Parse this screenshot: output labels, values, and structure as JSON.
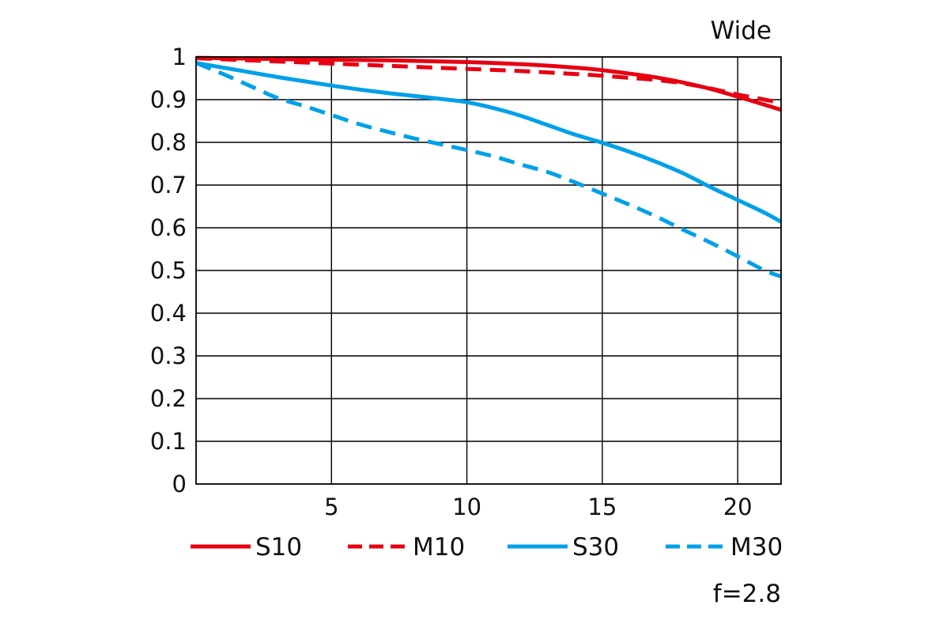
{
  "chart_data": {
    "type": "line",
    "title": "Wide",
    "annotation": "f=2.8",
    "xlabel": "",
    "ylabel": "",
    "xlim": [
      0,
      21.6
    ],
    "ylim": [
      0,
      1
    ],
    "x_ticks": [
      5,
      10,
      15,
      20
    ],
    "x_tick_labels": [
      "5",
      "10",
      "15",
      "20"
    ],
    "y_ticks": [
      0,
      0.1,
      0.2,
      0.3,
      0.4,
      0.5,
      0.6,
      0.7,
      0.8,
      0.9,
      1
    ],
    "y_tick_labels": [
      "0",
      "0.1",
      "0.2",
      "0.3",
      "0.4",
      "0.5",
      "0.6",
      "0.7",
      "0.8",
      "0.9",
      "1"
    ],
    "grid": true,
    "legend_position": "bottom",
    "series": [
      {
        "name": "S10",
        "color": "#e60012",
        "dash": "solid",
        "x": [
          0,
          2,
          4,
          6,
          8,
          10,
          12,
          14,
          15,
          16,
          17,
          18,
          19,
          20,
          21,
          21.6
        ],
        "y": [
          0.998,
          0.996,
          0.994,
          0.993,
          0.991,
          0.988,
          0.983,
          0.975,
          0.969,
          0.961,
          0.952,
          0.94,
          0.925,
          0.907,
          0.888,
          0.876
        ]
      },
      {
        "name": "M10",
        "color": "#e60012",
        "dash": "dashed",
        "x": [
          0,
          2,
          4,
          6,
          8,
          10,
          12,
          14,
          15,
          16,
          17,
          18,
          19,
          20,
          21,
          21.6
        ],
        "y": [
          0.997,
          0.992,
          0.987,
          0.982,
          0.977,
          0.972,
          0.967,
          0.96,
          0.956,
          0.951,
          0.946,
          0.938,
          0.926,
          0.912,
          0.9,
          0.892
        ]
      },
      {
        "name": "S30",
        "color": "#00a0e9",
        "dash": "solid",
        "x": [
          0,
          1,
          2,
          3,
          4,
          5,
          6,
          7,
          8,
          9,
          10,
          11,
          12,
          13,
          14,
          15,
          16,
          17,
          18,
          19,
          20,
          21,
          21.6
        ],
        "y": [
          0.986,
          0.975,
          0.964,
          0.953,
          0.943,
          0.933,
          0.924,
          0.916,
          0.909,
          0.902,
          0.894,
          0.88,
          0.862,
          0.84,
          0.818,
          0.799,
          0.778,
          0.754,
          0.727,
          0.695,
          0.665,
          0.635,
          0.614
        ]
      },
      {
        "name": "M30",
        "color": "#00a0e9",
        "dash": "dashed",
        "x": [
          0,
          1,
          2,
          3,
          4,
          5,
          6,
          7,
          8,
          9,
          10,
          11,
          12,
          13,
          14,
          15,
          16,
          17,
          18,
          19,
          20,
          21,
          21.6
        ],
        "y": [
          0.986,
          0.96,
          0.932,
          0.904,
          0.885,
          0.864,
          0.843,
          0.826,
          0.81,
          0.796,
          0.782,
          0.767,
          0.748,
          0.73,
          0.706,
          0.68,
          0.654,
          0.626,
          0.595,
          0.565,
          0.533,
          0.5,
          0.486
        ]
      }
    ]
  }
}
